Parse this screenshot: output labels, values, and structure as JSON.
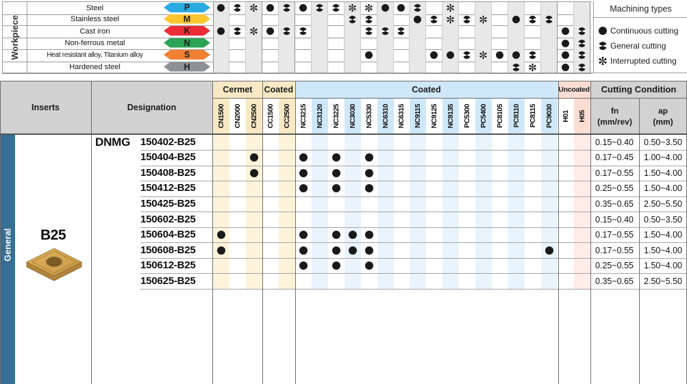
{
  "workpiece_section": {
    "title": "Workpiece",
    "rows": [
      {
        "label": "Steel",
        "code": "P",
        "color": "#2aabe2",
        "marks": {
          "CN1500": "c",
          "CN2000": "g",
          "CN2500": "i",
          "CC1500": "c",
          "CC2500": "g",
          "NC3215": "c",
          "NC3120": "g",
          "NC3225": "g",
          "NC3030": "i",
          "NC5330": "i",
          "NC6310": "c",
          "NC6315": "c",
          "NC9115": "g",
          "NC9135": "i"
        }
      },
      {
        "label": "Stainless steel",
        "code": "M",
        "color": "#fdc62f",
        "marks": {
          "NC3030": "g",
          "NC5330": "g",
          "NC9115": "c",
          "NC9125": "g",
          "NC9135": "i",
          "PC5300": "g",
          "PC5400": "i",
          "PC8110": "c",
          "PC8115": "g",
          "PC9030": "g"
        }
      },
      {
        "label": "Cast iron",
        "code": "K",
        "color": "#ec2c39",
        "marks": {
          "CN1500": "c",
          "CN2000": "g",
          "CN2500": "i",
          "CC1500": "c",
          "CC2500": "g",
          "NC3215": "g",
          "NC5330": "g",
          "NC6310": "g",
          "NC6315": "g",
          "H01": "c",
          "H05": "g"
        }
      },
      {
        "label": "Non-ferrous metal",
        "code": "N",
        "color": "#2ca356",
        "marks": {
          "H01": "c",
          "H05": "g"
        }
      },
      {
        "label": "Heat resistant alloy, Titanium alloy",
        "code": "S",
        "color": "#f08032",
        "marks": {
          "NC5330": "c",
          "NC9125": "c",
          "NC9135": "c",
          "PC5300": "g",
          "PC5400": "i",
          "PC8105": "c",
          "PC8110": "c",
          "PC8115": "g",
          "H01": "c",
          "H05": "g"
        }
      },
      {
        "label": "Hardened steel",
        "code": "H",
        "color": "#8f9093",
        "marks": {
          "PC8110": "g",
          "PC8115": "i",
          "H01": "c",
          "H05": "g"
        }
      }
    ]
  },
  "machining_types": {
    "title": "Machining types",
    "items": [
      {
        "symbol": "continuous",
        "label": "Continuous cutting"
      },
      {
        "symbol": "general",
        "label": "General cutting"
      },
      {
        "symbol": "interrupted",
        "label": "Interrupted cutting"
      }
    ]
  },
  "grade_groups": [
    {
      "label": "Cermet",
      "type": "tan",
      "grades": [
        "CN1500",
        "CN2000",
        "CN2500"
      ]
    },
    {
      "label": "Coated",
      "type": "tan",
      "grades": [
        "CC1500",
        "CC2500"
      ]
    },
    {
      "label": "Coated",
      "type": "blue",
      "grades": [
        "NC3215",
        "NC3120",
        "NC3225",
        "NC3030",
        "NC5330",
        "NC6310",
        "NC6315",
        "NC9115",
        "NC9125",
        "NC9135",
        "PC5300",
        "PC5400",
        "PC8105",
        "PC8110",
        "PC8115",
        "PC9030"
      ]
    },
    {
      "label": "Uncoated",
      "type": "pink",
      "grades": [
        "H01",
        "H05"
      ]
    }
  ],
  "table": {
    "headers": {
      "inserts": "Inserts",
      "designation": "Designation",
      "cutting_condition": "Cutting Condition",
      "fn": "fn",
      "fn_unit": "(mm/rev)",
      "ap": "ap",
      "ap_unit": "(mm)"
    },
    "category": "General",
    "insert_name": "B25",
    "series_label": "DNMG",
    "rows": [
      {
        "designation": "150402-B25",
        "grades": [],
        "fn": "0.15~0.40",
        "ap": "0.50~3.50"
      },
      {
        "designation": "150404-B25",
        "grades": [
          "CN2500",
          "NC3215",
          "NC3225",
          "NC5330"
        ],
        "fn": "0.17~0.45",
        "ap": "1.00~4.00"
      },
      {
        "designation": "150408-B25",
        "grades": [
          "CN2500",
          "NC3215",
          "NC3225",
          "NC5330"
        ],
        "fn": "0.17~0.55",
        "ap": "1.50~4.00"
      },
      {
        "designation": "150412-B25",
        "grades": [
          "NC3215",
          "NC3225",
          "NC5330"
        ],
        "fn": "0.25~0.55",
        "ap": "1.50~4.00"
      },
      {
        "designation": "150425-B25",
        "grades": [],
        "fn": "0.35~0.65",
        "ap": "2.50~5.50"
      },
      {
        "designation": "150602-B25",
        "grades": [],
        "fn": "0.15~0.40",
        "ap": "0.50~3.50"
      },
      {
        "designation": "150604-B25",
        "grades": [
          "CN1500",
          "NC3215",
          "NC3225",
          "NC3030",
          "NC5330"
        ],
        "fn": "0.17~0.55",
        "ap": "1.50~4.00"
      },
      {
        "designation": "150608-B25",
        "grades": [
          "CN1500",
          "NC3215",
          "NC3225",
          "NC3030",
          "NC5330",
          "PC9030"
        ],
        "fn": "0.17~0.55",
        "ap": "1.50~4.00"
      },
      {
        "designation": "150612-B25",
        "grades": [
          "NC3215",
          "NC3225",
          "NC5330"
        ],
        "fn": "0.25~0.55",
        "ap": "1.50~4.00"
      },
      {
        "designation": "150625-B25",
        "grades": [],
        "fn": "0.35~0.65",
        "ap": "2.50~5.50"
      }
    ]
  },
  "colors": {
    "sidebar_teal": "#376e93",
    "header_gray": "#d2d2d2",
    "tan_header": "#f8e9c4",
    "tan_body": "#fdf3da",
    "blue_header": "#cfe8f9",
    "blue_body": "#e9f4fd",
    "pink_header": "#fbddd3",
    "pink_body": "#fdece7",
    "grid_stripe_gray": "#e8e8e8",
    "symbol_black": "#1a1a1a"
  }
}
